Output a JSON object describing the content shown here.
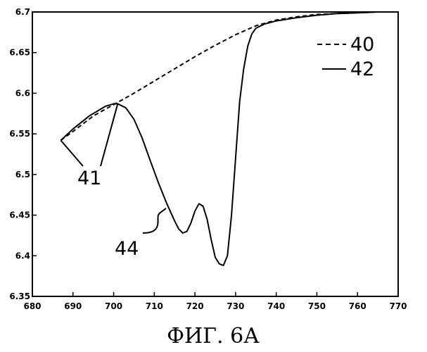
{
  "figure_caption": "ФИГ. 6А",
  "chart_data": {
    "type": "line",
    "title": "",
    "xlabel": "",
    "ylabel": "",
    "xlim": [
      680,
      770
    ],
    "ylim": [
      6.35,
      6.7
    ],
    "grid": false,
    "x_ticks": [
      680,
      690,
      700,
      710,
      720,
      730,
      740,
      750,
      760,
      770
    ],
    "y_ticks": [
      6.35,
      6.4,
      6.45,
      6.5,
      6.55,
      6.6,
      6.65,
      6.7
    ],
    "series": [
      {
        "name": "40",
        "style": "dashed",
        "x": [
          687,
          690,
          695,
          700,
          705,
          710,
          715,
          720,
          725,
          730,
          735,
          740,
          745,
          750,
          755,
          760,
          765
        ],
        "y": [
          6.542,
          6.553,
          6.572,
          6.586,
          6.6,
          6.615,
          6.63,
          6.645,
          6.659,
          6.672,
          6.683,
          6.69,
          6.694,
          6.697,
          6.698,
          6.699,
          6.7
        ]
      },
      {
        "name": "42",
        "style": "solid",
        "x": [
          687,
          690,
          694,
          698,
          700,
          701,
          703,
          705,
          707,
          709,
          711,
          713,
          715,
          716,
          717,
          718,
          719,
          720,
          721,
          722,
          723,
          724,
          725,
          726,
          727,
          728,
          729,
          730,
          731,
          732,
          733,
          734,
          735,
          737,
          740,
          745,
          750,
          755,
          760,
          765
        ],
        "y": [
          6.542,
          6.556,
          6.572,
          6.584,
          6.587,
          6.587,
          6.582,
          6.568,
          6.545,
          6.517,
          6.49,
          6.465,
          6.443,
          6.433,
          6.428,
          6.43,
          6.44,
          6.455,
          6.464,
          6.461,
          6.445,
          6.42,
          6.398,
          6.39,
          6.388,
          6.4,
          6.45,
          6.52,
          6.59,
          6.63,
          6.658,
          6.673,
          6.68,
          6.685,
          6.689,
          6.693,
          6.696,
          6.698,
          6.699,
          6.7
        ]
      }
    ],
    "legend": [
      {
        "label": "40",
        "style": "dashed"
      },
      {
        "label": "42",
        "style": "solid"
      }
    ],
    "annotations": [
      {
        "label": "41",
        "points": [
          [
            687,
            6.542
          ],
          [
            701,
            6.587
          ]
        ]
      },
      {
        "label": "44"
      }
    ]
  }
}
